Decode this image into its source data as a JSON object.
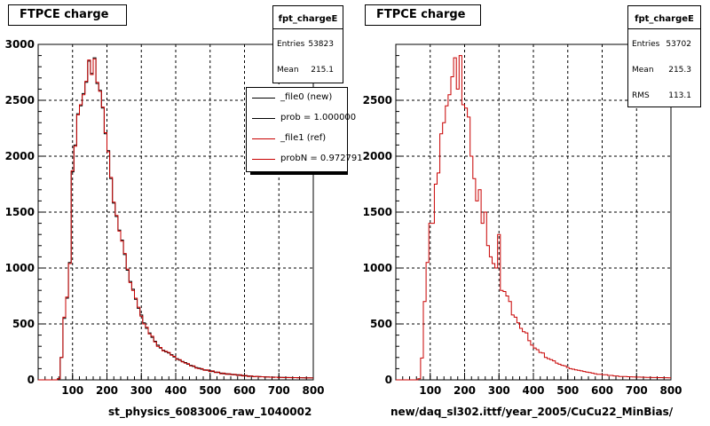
{
  "colors": {
    "new": "#000000",
    "ref": "#c80000",
    "grid": "#000000"
  },
  "panels": [
    {
      "title": "FTPCE charge",
      "stats": {
        "name": "fpt_chargeE",
        "rows": [
          {
            "k": "Entries",
            "v": "53823"
          },
          {
            "k": "Mean",
            "v": "215.1"
          }
        ]
      },
      "legend": [
        {
          "label": "_file0 (new)",
          "color": "#000000"
        },
        {
          "label": "prob = 1.000000",
          "color": "#000000"
        },
        {
          "label": "_file1 (ref)",
          "color": "#c80000"
        },
        {
          "label": "probN = 0.972791",
          "color": "#c80000"
        }
      ],
      "xtitle": "st_physics_6083006_raw_1040002",
      "note": ""
    },
    {
      "title": "FTPCE charge",
      "stats": {
        "name": "fpt_chargeE",
        "rows": [
          {
            "k": "Entries",
            "v": "53702"
          },
          {
            "k": "Mean",
            "v": "215.3"
          },
          {
            "k": "RMS",
            "v": "113.1"
          }
        ]
      },
      "legend": [],
      "xtitle": "new/daq_sl302.ittf/year_2005/CuCu22_MinBias/",
      "note": ""
    }
  ],
  "chart_data": [
    {
      "type": "line",
      "style": "step",
      "title": "FTPCE charge",
      "xlabel": "st_physics_6083006_raw_1040002",
      "ylabel": "",
      "xlim": [
        0,
        800
      ],
      "ylim": [
        0,
        3000
      ],
      "xticks": [
        100,
        200,
        300,
        400,
        500,
        600,
        700,
        800
      ],
      "yticks": [
        0,
        500,
        1000,
        1500,
        2000,
        2500,
        3000
      ],
      "grid": true,
      "bin_width": 8,
      "x_start": 0,
      "series": [
        {
          "name": "_file0 (new)",
          "color": "#000000",
          "values": [
            0,
            0,
            0,
            0,
            0,
            0,
            0,
            10,
            200,
            550,
            730,
            1050,
            1860,
            2100,
            2380,
            2450,
            2560,
            2660,
            2850,
            2740,
            2880,
            2650,
            2590,
            2430,
            2200,
            2050,
            1800,
            1580,
            1460,
            1340,
            1250,
            1120,
            980,
            880,
            810,
            720,
            640,
            580,
            510,
            460,
            420,
            380,
            345,
            310,
            285,
            265,
            250,
            240,
            225,
            205,
            190,
            175,
            165,
            155,
            140,
            130,
            120,
            110,
            105,
            95,
            90,
            85,
            80,
            75,
            70,
            65,
            60,
            55,
            55,
            50,
            50,
            45,
            45,
            40,
            40,
            35,
            35,
            35,
            30,
            30,
            30,
            28,
            27,
            26,
            25,
            25,
            24,
            23,
            22,
            22,
            21,
            21,
            20,
            20,
            20,
            19,
            19,
            18,
            18,
            18
          ]
        },
        {
          "name": "_file1 (ref)",
          "color": "#c80000",
          "values": [
            0,
            0,
            0,
            0,
            0,
            0,
            0,
            10,
            200,
            560,
            740,
            1040,
            1870,
            2090,
            2370,
            2460,
            2550,
            2670,
            2860,
            2730,
            2870,
            2660,
            2580,
            2440,
            2210,
            2040,
            1810,
            1590,
            1470,
            1330,
            1240,
            1130,
            990,
            870,
            800,
            730,
            650,
            570,
            500,
            470,
            410,
            390,
            340,
            300,
            290,
            260,
            255,
            245,
            220,
            210,
            185,
            180,
            160,
            150,
            145,
            125,
            125,
            105,
            100,
            100,
            85,
            90,
            75,
            80,
            65,
            70,
            55,
            60,
            50,
            55,
            45,
            50,
            40,
            45,
            35,
            40,
            30,
            35,
            28,
            32,
            27,
            28,
            25,
            26,
            24,
            22,
            24,
            21,
            22,
            20,
            21,
            20,
            19,
            20,
            18,
            19,
            18,
            17,
            18,
            17
          ]
        }
      ]
    },
    {
      "type": "line",
      "style": "step",
      "title": "FTPCE charge",
      "xlabel": "new/daq_sl302.ittf/year_2005/CuCu22_MinBias/",
      "ylabel": "",
      "xlim": [
        0,
        800
      ],
      "ylim": [
        0,
        3000
      ],
      "xticks": [
        100,
        200,
        300,
        400,
        500,
        600,
        700,
        800
      ],
      "yticks": [
        0,
        500,
        1000,
        1500,
        2000,
        2500
      ],
      "grid": true,
      "bin_width": 8,
      "x_start": 0,
      "series": [
        {
          "name": "",
          "color": "#c80000",
          "values": [
            0,
            0,
            0,
            0,
            0,
            0,
            0,
            0,
            10,
            195,
            700,
            1050,
            1400,
            1400,
            1750,
            1850,
            2200,
            2300,
            2450,
            2550,
            2710,
            2880,
            2600,
            2900,
            2460,
            2430,
            2350,
            2000,
            1800,
            1600,
            1700,
            1400,
            1500,
            1200,
            1100,
            1040,
            1000,
            1300,
            800,
            790,
            750,
            700,
            580,
            560,
            510,
            460,
            430,
            420,
            350,
            310,
            285,
            270,
            245,
            240,
            200,
            190,
            180,
            170,
            150,
            140,
            130,
            125,
            110,
            100,
            95,
            90,
            85,
            80,
            75,
            70,
            65,
            60,
            55,
            50,
            50,
            45,
            45,
            40,
            40,
            35,
            35,
            30,
            30,
            30,
            28,
            27,
            26,
            25,
            25,
            24,
            23,
            22,
            22,
            21,
            21,
            20,
            20,
            19,
            19,
            18
          ]
        }
      ]
    }
  ]
}
